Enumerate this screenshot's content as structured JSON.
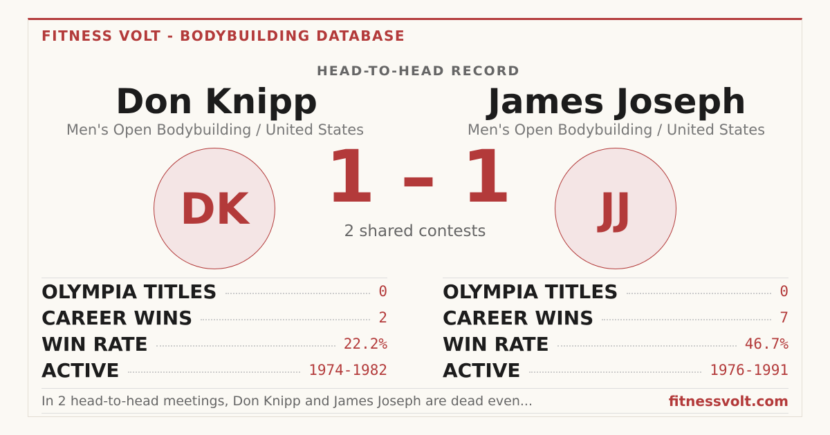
{
  "header": {
    "brand": "FITNESS VOLT - BODYBUILDING DATABASE",
    "kicker": "HEAD-TO-HEAD RECORD"
  },
  "left": {
    "name": "Don Knipp",
    "subtitle": "Men's Open Bodybuilding / United States",
    "initials": "DK",
    "stats": [
      {
        "label": "OLYMPIA TITLES",
        "value": "0"
      },
      {
        "label": "CAREER WINS",
        "value": "2"
      },
      {
        "label": "WIN RATE",
        "value": "22.2%"
      },
      {
        "label": "ACTIVE",
        "value": "1974-1982"
      }
    ]
  },
  "right": {
    "name": "James Joseph",
    "subtitle": "Men's Open Bodybuilding / United States",
    "initials": "JJ",
    "stats": [
      {
        "label": "OLYMPIA TITLES",
        "value": "0"
      },
      {
        "label": "CAREER WINS",
        "value": "7"
      },
      {
        "label": "WIN RATE",
        "value": "46.7%"
      },
      {
        "label": "ACTIVE",
        "value": "1976-1991"
      }
    ]
  },
  "score": {
    "text": "1 – 1",
    "caption": "2 shared contests"
  },
  "footer": {
    "summary": "In 2 head-to-head meetings, Don Knipp and James Joseph are dead even...",
    "site": "fitnessvolt.com"
  }
}
